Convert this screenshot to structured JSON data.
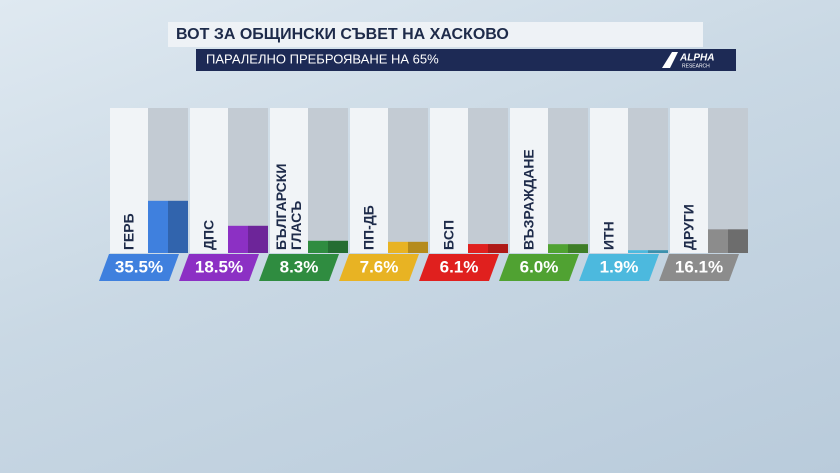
{
  "chart_data": {
    "type": "bar",
    "title": "ВОТ ЗА ОБЩИНСКИ СЪВЕТ НА ХАСКОВО",
    "subtitle": "ПАРАЛЕЛНО ПРЕБРОЯВАНЕ НА 65%",
    "logo": {
      "top": "ALPHA",
      "bottom": "RESEARCH"
    },
    "categories": [
      "ГЕРБ",
      "ДПС",
      "БЪЛГАРСКИ ГЛАСЪ",
      "ПП-ДБ",
      "БСП",
      "ВЪЗРАЖДАНЕ",
      "ИТН",
      "ДРУГИ"
    ],
    "values": [
      35.5,
      18.5,
      8.3,
      7.6,
      6.1,
      6.0,
      1.9,
      16.1
    ],
    "value_labels": [
      "35.5%",
      "18.5%",
      "8.3%",
      "7.6%",
      "6.1%",
      "6.0%",
      "1.9%",
      "16.1%"
    ],
    "colors": [
      "#3f80de",
      "#8c30c4",
      "#2f8c40",
      "#e8b323",
      "#e0201e",
      "#50a232",
      "#4cb9de",
      "#8c8c8c"
    ]
  }
}
